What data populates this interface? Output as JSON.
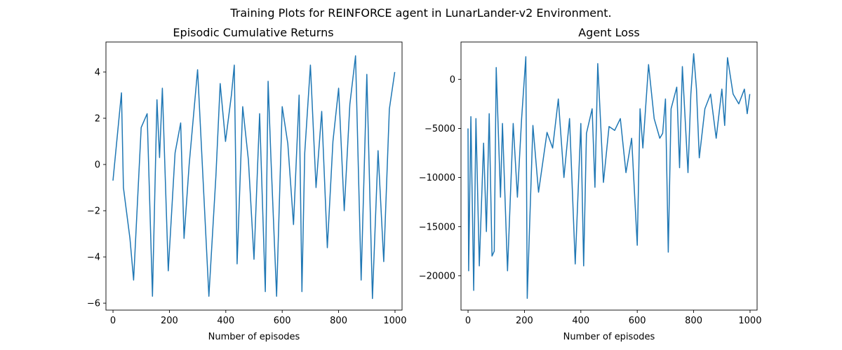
{
  "figure": {
    "suptitle": "Training Plots for REINFORCE agent in LunarLander-v2 Environment."
  },
  "chart_data": [
    {
      "type": "line",
      "title": "Episodic Cumulative Returns",
      "xlabel": "Number of episodes",
      "ylabel": "",
      "xlim": [
        -25,
        1025
      ],
      "ylim": [
        -6.3,
        5.3
      ],
      "xticks": [
        0,
        200,
        400,
        600,
        800,
        1000
      ],
      "xtick_labels": [
        "0",
        "200",
        "400",
        "600",
        "800",
        "1000"
      ],
      "yticks": [
        -6,
        -4,
        -2,
        0,
        2,
        4
      ],
      "ytick_labels": [
        "−6",
        "−4",
        "−2",
        "0",
        "2",
        "4"
      ],
      "grid": false,
      "series": [
        {
          "color": "#1f77b4",
          "x": [
            0,
            30,
            37,
            60,
            73,
            100,
            121,
            140,
            156,
            165,
            175,
            196,
            220,
            240,
            252,
            270,
            300,
            340,
            365,
            380,
            399,
            420,
            430,
            440,
            460,
            480,
            500,
            520,
            540,
            550,
            560,
            580,
            600,
            620,
            640,
            660,
            670,
            680,
            700,
            720,
            740,
            760,
            780,
            800,
            820,
            840,
            860,
            880,
            900,
            920,
            940,
            960,
            980,
            999
          ],
          "y": [
            -0.7,
            3.1,
            -1.0,
            -3.2,
            -5.0,
            1.6,
            2.2,
            -5.7,
            2.8,
            0.3,
            3.3,
            -4.6,
            0.5,
            1.8,
            -3.2,
            0.0,
            4.1,
            -5.7,
            -0.5,
            3.5,
            1.0,
            3.0,
            4.3,
            -4.3,
            2.5,
            0.2,
            -4.1,
            2.2,
            -5.5,
            3.6,
            0.3,
            -5.7,
            2.5,
            0.9,
            -2.6,
            3.0,
            -5.5,
            0.5,
            4.3,
            -1.0,
            2.3,
            -3.6,
            1.0,
            3.3,
            -2.0,
            2.6,
            4.7,
            -5.0,
            3.9,
            -5.8,
            0.6,
            -4.2,
            2.4,
            4.0
          ]
        }
      ]
    },
    {
      "type": "line",
      "title": "Agent Loss",
      "xlabel": "Number of episodes",
      "ylabel": "",
      "xlim": [
        -25,
        1025
      ],
      "ylim": [
        -23500,
        3800
      ],
      "xticks": [
        0,
        200,
        400,
        600,
        800,
        1000
      ],
      "xtick_labels": [
        "0",
        "200",
        "400",
        "600",
        "800",
        "1000"
      ],
      "yticks": [
        -20000,
        -15000,
        -10000,
        -5000,
        0
      ],
      "ytick_labels": [
        "−20000",
        "−15000",
        "−10000",
        "−5000",
        "0"
      ],
      "grid": false,
      "series": [
        {
          "color": "#1f77b4",
          "x": [
            0,
            2,
            10,
            20,
            28,
            40,
            55,
            65,
            75,
            85,
            93,
            100,
            115,
            122,
            140,
            160,
            175,
            190,
            205,
            210,
            230,
            250,
            280,
            300,
            320,
            340,
            360,
            380,
            400,
            410,
            420,
            440,
            450,
            460,
            470,
            480,
            500,
            520,
            540,
            560,
            580,
            600,
            610,
            620,
            640,
            660,
            680,
            690,
            700,
            710,
            720,
            740,
            750,
            760,
            780,
            790,
            800,
            810,
            820,
            840,
            860,
            880,
            900,
            910,
            920,
            940,
            960,
            980,
            990,
            999
          ],
          "y": [
            -5000,
            -19500,
            -3800,
            -21500,
            -4000,
            -19000,
            -6500,
            -15500,
            -3500,
            -18000,
            -17500,
            1200,
            -12000,
            -4500,
            -19500,
            -4500,
            -12000,
            -4000,
            2300,
            -22300,
            -4700,
            -11500,
            -5400,
            -7000,
            -2000,
            -10000,
            -4000,
            -18800,
            -4500,
            -19000,
            -5500,
            -3000,
            -11000,
            1600,
            -4300,
            -10500,
            -4800,
            -5200,
            -4000,
            -9500,
            -6000,
            -16900,
            -3000,
            -7000,
            1500,
            -4000,
            -6000,
            -5500,
            -2000,
            -17600,
            -3000,
            -800,
            -9000,
            1300,
            -9500,
            -1500,
            2600,
            -1000,
            -8000,
            -3000,
            -1500,
            -6000,
            -1000,
            -4700,
            2200,
            -1500,
            -2500,
            -1000,
            -3500,
            -1500
          ]
        }
      ]
    }
  ]
}
